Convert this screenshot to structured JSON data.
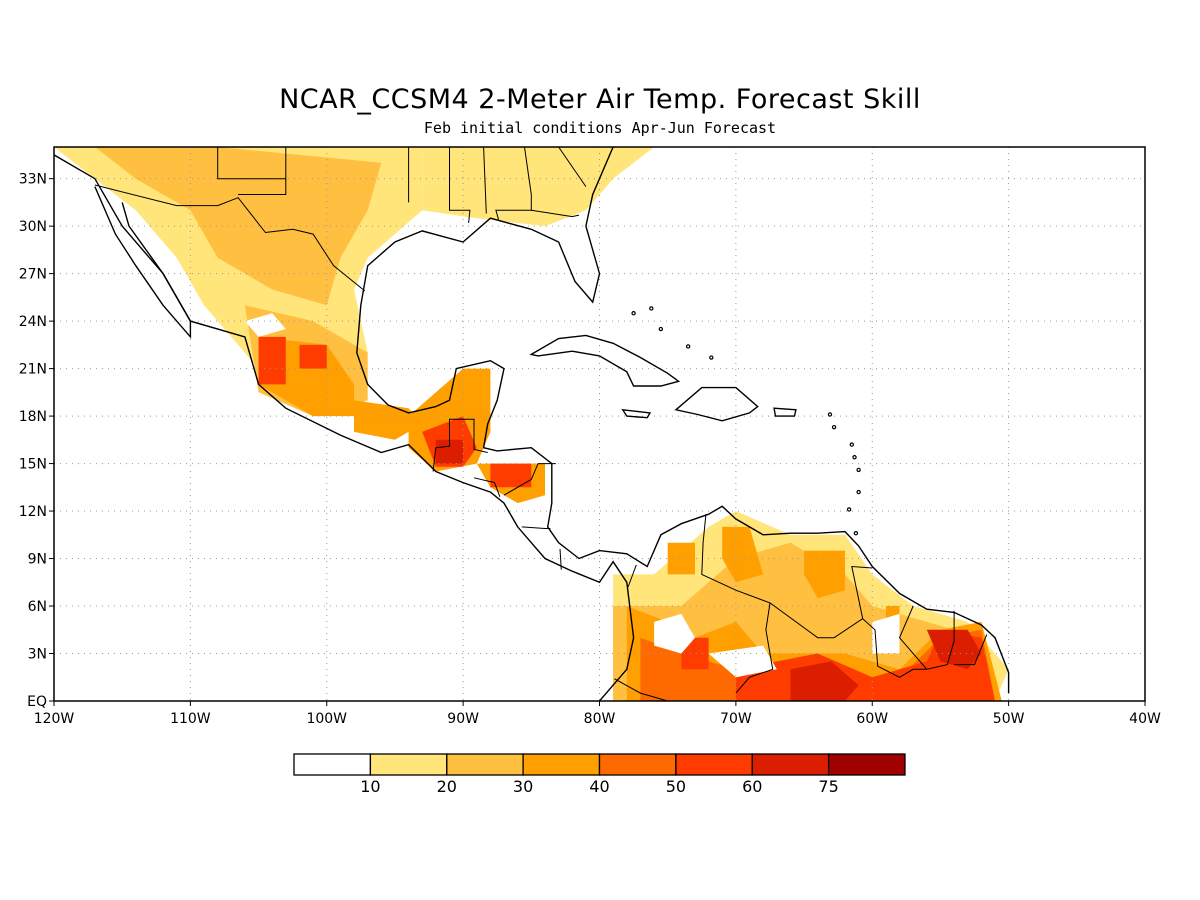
{
  "title": "NCAR_CCSM4 2-Meter Air Temp. Forecast Skill",
  "subtitle": "Feb initial conditions  Apr-Jun Forecast",
  "map": {
    "lon_range": [
      -120,
      -40
    ],
    "lat_range": [
      0,
      35
    ],
    "x_ticks": [
      {
        "value": -120,
        "label": "120W"
      },
      {
        "value": -110,
        "label": "110W"
      },
      {
        "value": -100,
        "label": "100W"
      },
      {
        "value": -90,
        "label": "90W"
      },
      {
        "value": -80,
        "label": "80W"
      },
      {
        "value": -70,
        "label": "70W"
      },
      {
        "value": -60,
        "label": "60W"
      },
      {
        "value": -50,
        "label": "50W"
      },
      {
        "value": -40,
        "label": "40W"
      }
    ],
    "y_ticks": [
      {
        "value": 0,
        "label": "EQ"
      },
      {
        "value": 3,
        "label": "3N"
      },
      {
        "value": 6,
        "label": "6N"
      },
      {
        "value": 9,
        "label": "9N"
      },
      {
        "value": 12,
        "label": "12N"
      },
      {
        "value": 15,
        "label": "15N"
      },
      {
        "value": 18,
        "label": "18N"
      },
      {
        "value": 21,
        "label": "21N"
      },
      {
        "value": 24,
        "label": "24N"
      },
      {
        "value": 27,
        "label": "27N"
      },
      {
        "value": 30,
        "label": "30N"
      },
      {
        "value": 33,
        "label": "33N"
      }
    ],
    "grid": "dotted"
  },
  "colorbar": {
    "levels": [
      "10",
      "20",
      "30",
      "40",
      "50",
      "60",
      "75"
    ],
    "colors": [
      "#ffffff",
      "#ffe57a",
      "#ffbf40",
      "#ffa000",
      "#ff6a00",
      "#ff3c00",
      "#dc1e00",
      "#a00000"
    ]
  },
  "colors": {
    "land_outline": "#000000",
    "skill_light": "#ffe57a",
    "skill_medium": "#ffbf40",
    "skill_orange": "#ffa000",
    "skill_dark_orange": "#ff6a00",
    "skill_red": "#ff3c00",
    "skill_dark_red": "#dc1e00"
  }
}
